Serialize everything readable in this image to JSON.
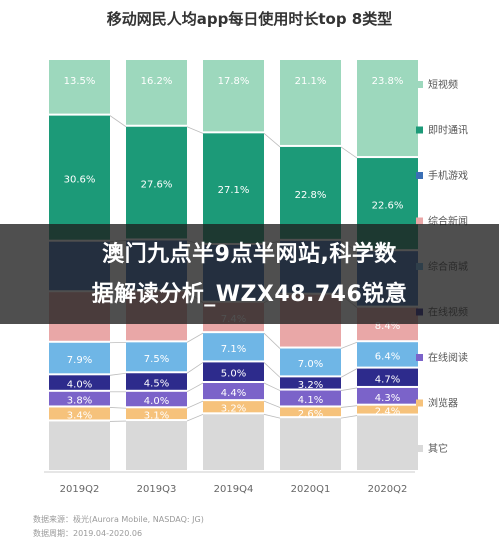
{
  "chart_data": {
    "type": "bar",
    "stacked": true,
    "normalized_percent": true,
    "title": "移动网民人均app每日使用时长top 8类型",
    "categories": [
      "2019Q2",
      "2019Q3",
      "2019Q4",
      "2020Q1",
      "2020Q2"
    ],
    "series": [
      {
        "name": "其它",
        "color": "#d9d9d9",
        "values": [
          null,
          null,
          null,
          null,
          null
        ]
      },
      {
        "name": "浏览器",
        "color": "#f6c27b",
        "values": [
          3.4,
          3.1,
          3.2,
          2.6,
          2.4
        ]
      },
      {
        "name": "在线阅读",
        "color": "#7b63c9",
        "values": [
          3.8,
          4.0,
          4.4,
          4.1,
          4.3
        ]
      },
      {
        "name": "在线视频",
        "color": "#2d2b8c",
        "values": [
          4.0,
          4.5,
          5.0,
          3.2,
          4.7
        ]
      },
      {
        "name": "综合商城",
        "color": "#6fb6e6",
        "values": [
          7.9,
          7.5,
          7.1,
          7.0,
          6.4
        ]
      },
      {
        "name": "综合新闻",
        "color": "#e9a7a7",
        "values": [
          null,
          null,
          7.4,
          null,
          8.4
        ]
      },
      {
        "name": "手机游戏",
        "color": "#3b6fb5",
        "values": [
          null,
          null,
          null,
          null,
          null
        ]
      },
      {
        "name": "即时通讯",
        "color": "#1c9a78",
        "values": [
          30.6,
          27.6,
          27.1,
          22.8,
          22.6
        ]
      },
      {
        "name": "短视频",
        "color": "#9dd8bd",
        "values": [
          13.5,
          16.2,
          17.8,
          21.1,
          23.8
        ]
      }
    ],
    "ylim": [
      0,
      100
    ],
    "legend_position": "right",
    "grid": false
  },
  "source": {
    "line1": "数据来源：极光(Aurora Mobile, NASDAQ: JG)",
    "line2": "数据周期：2019.04-2020.06"
  },
  "overlay": {
    "line1": "澳门九点半9点半网站,科学数",
    "line2": "据解读分析_WZX48.746锐意"
  }
}
